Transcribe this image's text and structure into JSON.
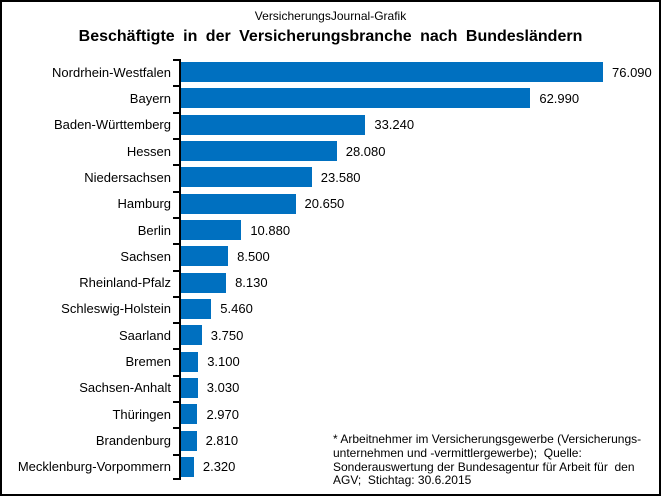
{
  "header": {
    "brand": "VersicherungsJournal-Grafik"
  },
  "chart_data": {
    "type": "bar",
    "orientation": "horizontal",
    "title": "Beschäftigte in der Versicherungsbranche nach Bundesländern",
    "categories": [
      "Nordrhein-Westfalen",
      "Bayern",
      "Baden-Württemberg",
      "Hessen",
      "Niedersachsen",
      "Hamburg",
      "Berlin",
      "Sachsen",
      "Rheinland-Pfalz",
      "Schleswig-Holstein",
      "Saarland",
      "Bremen",
      "Sachsen-Anhalt",
      "Thüringen",
      "Brandenburg",
      "Mecklenburg-Vorpommern"
    ],
    "values": [
      76090,
      62990,
      33240,
      28080,
      23580,
      20650,
      10880,
      8500,
      8130,
      5460,
      3750,
      3100,
      3030,
      2970,
      2810,
      2320
    ],
    "value_labels": [
      "76.090",
      "62.990",
      "33.240",
      "28.080",
      "23.580",
      "20.650",
      "10.880",
      "8.500",
      "8.130",
      "5.460",
      "3.750",
      "3.100",
      "3.030",
      "2.970",
      "2.810",
      "2.320"
    ],
    "bar_color": "#0070C0",
    "axis_color": "#000000",
    "xlim": [
      0,
      80000
    ],
    "grid": false,
    "legend": "none",
    "footnote": "* Arbeitnehmer im Versicherungsgewerbe (Versicherungs-\nunternehmen und -vermittlergewerbe);  Quelle:\nSonderauswertung der Bundesagentur für Arbeit für  den\nAGV;  Stichtag: 30.6.2015"
  }
}
